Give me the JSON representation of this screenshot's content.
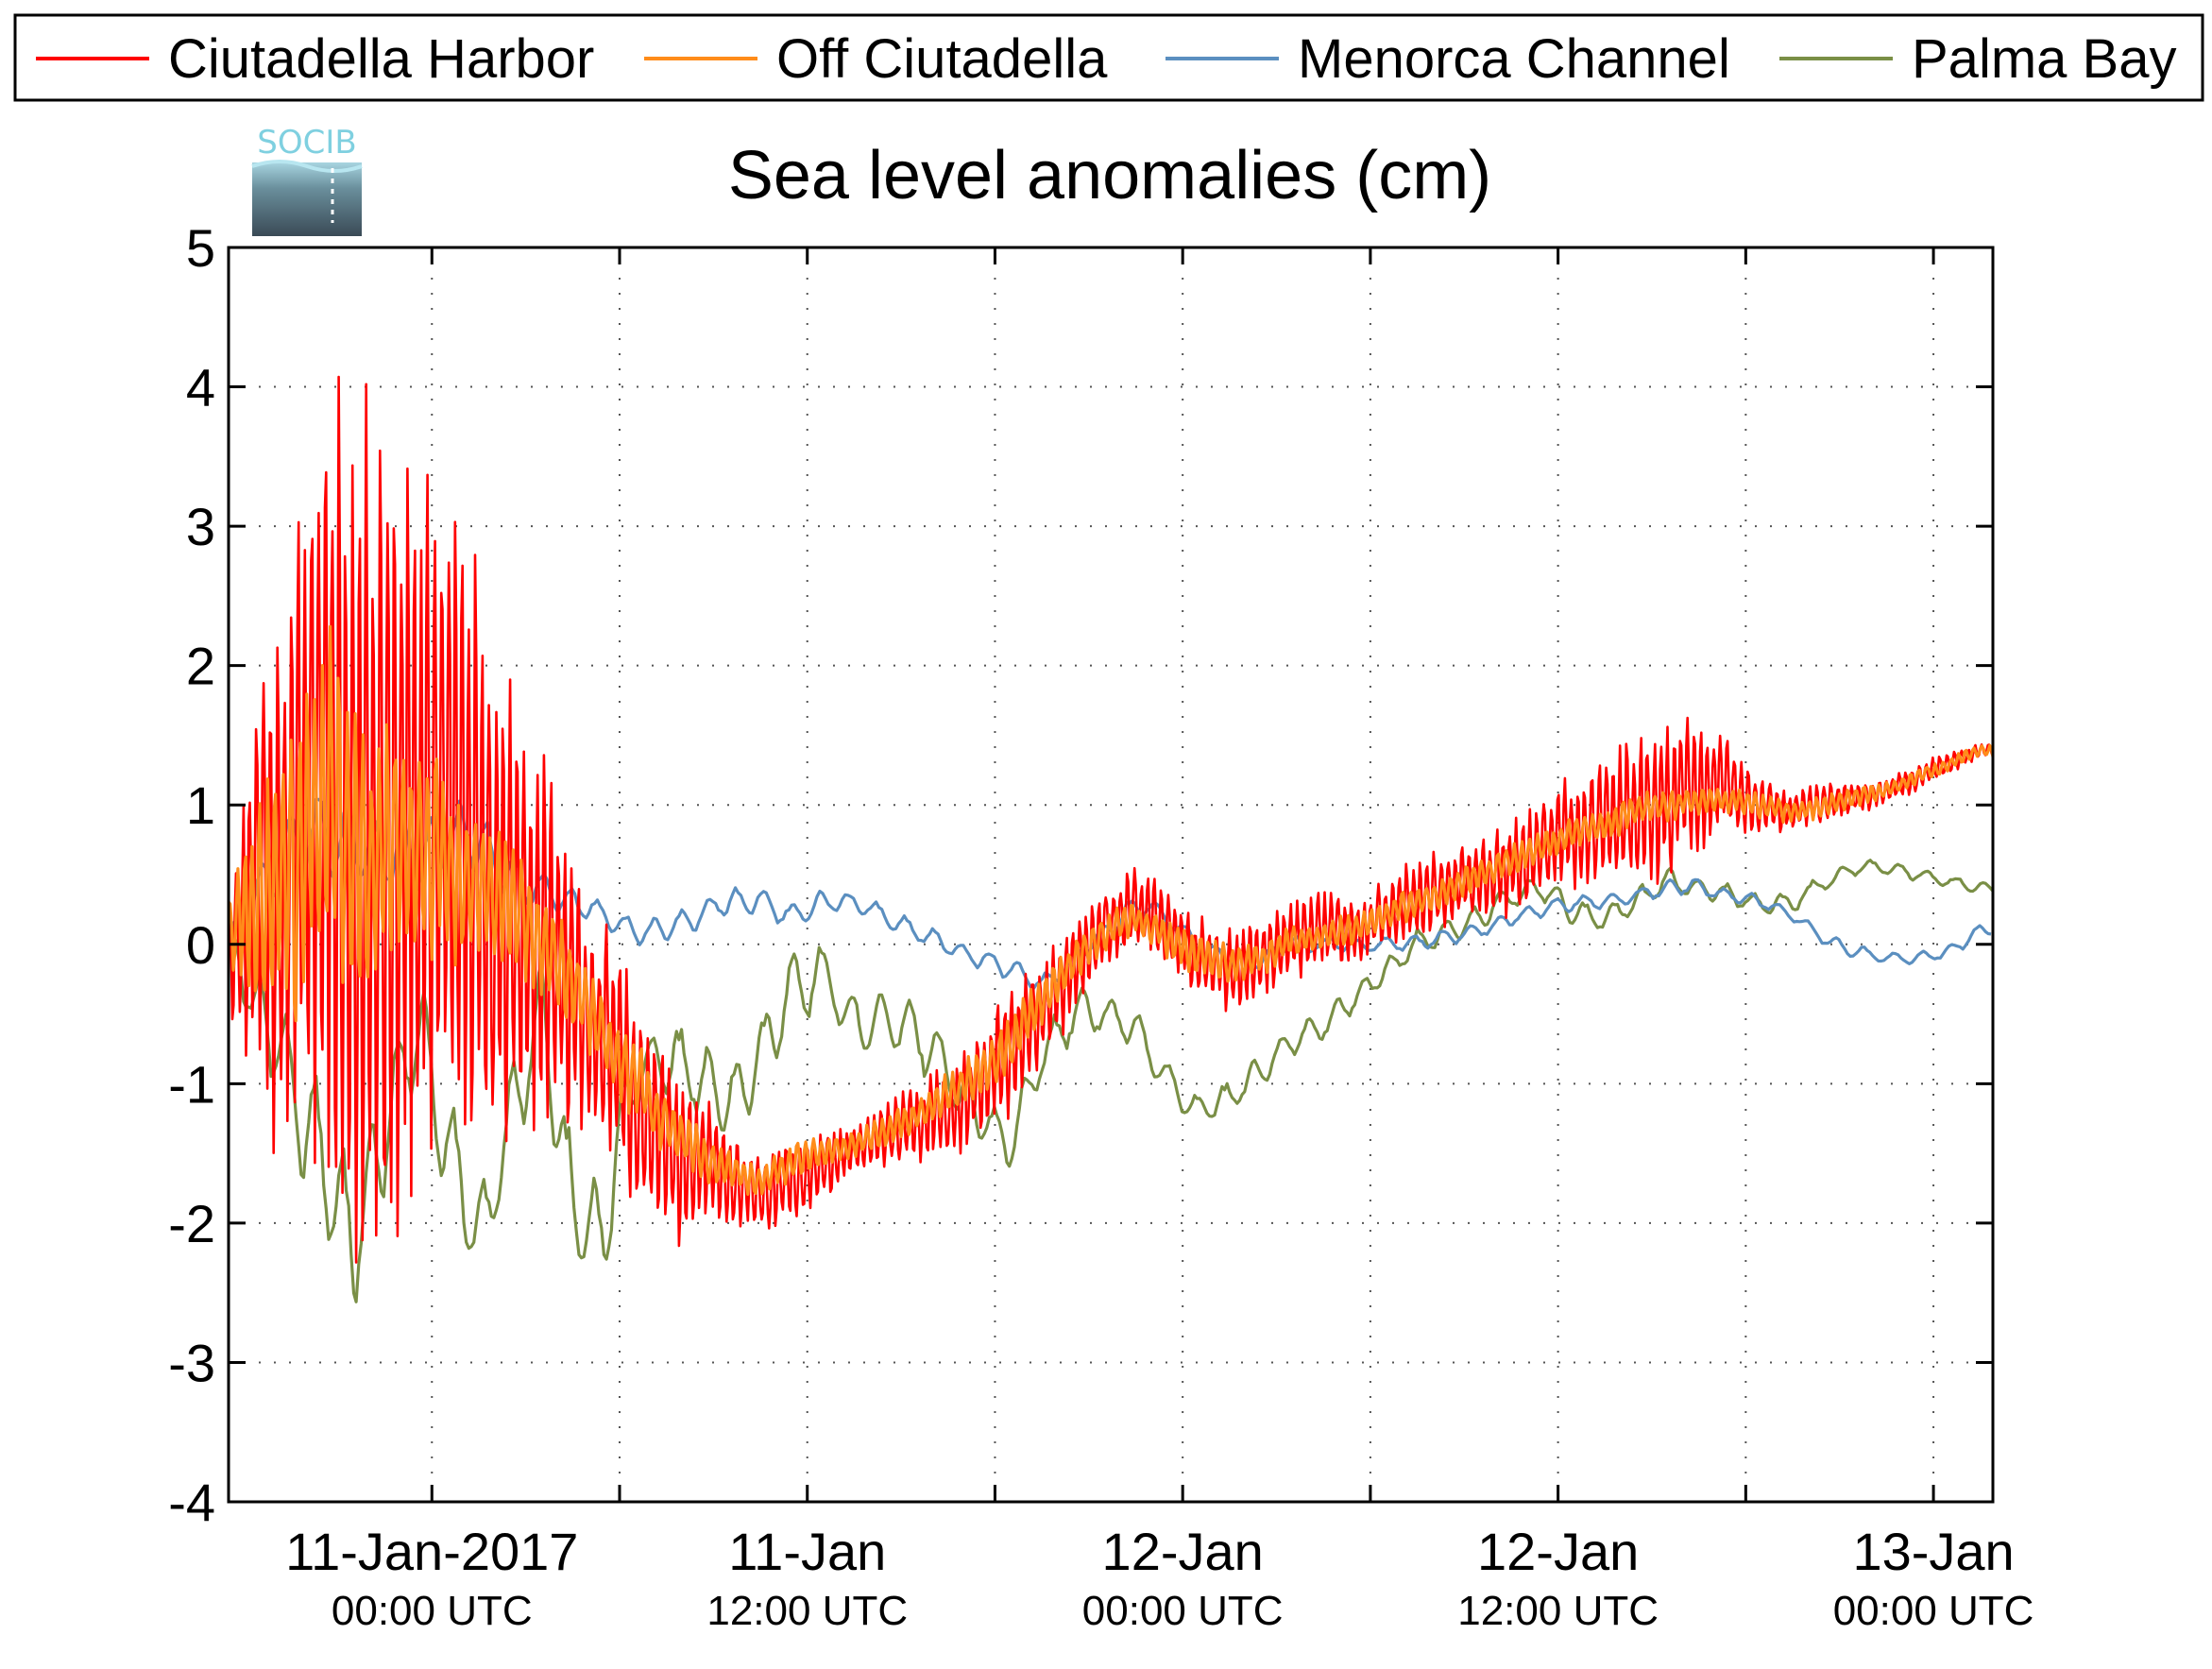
{
  "chart_data": {
    "type": "line",
    "title": "Sea level anomalies (cm)",
    "logo_text": "SOCIB",
    "xlabel": "",
    "ylabel": "",
    "ylim": [
      -4,
      5
    ],
    "yticks": [
      "5",
      "4",
      "3",
      "2",
      "1",
      "0",
      "-1",
      "-2",
      "-3",
      "-4"
    ],
    "xlim_hours": [
      -6.5,
      49.9
    ],
    "xticks": [
      {
        "main": "11-Jan-2017",
        "sub": "00:00 UTC"
      },
      {
        "main": "11-Jan",
        "sub": "12:00 UTC"
      },
      {
        "main": "12-Jan",
        "sub": "00:00 UTC"
      },
      {
        "main": "12-Jan",
        "sub": "12:00 UTC"
      },
      {
        "main": "13-Jan",
        "sub": "00:00 UTC"
      }
    ],
    "grid": true,
    "legend_position": "top",
    "series": [
      {
        "name": "Ciutadella Harbor",
        "color": "#ff0000",
        "x": [
          -6.5,
          -5.5,
          -4.5,
          -3.5,
          -2.5,
          -1.5,
          -0.5,
          0.5,
          1.5,
          2.5,
          3.5,
          4.5,
          5.5,
          6.5,
          7.5,
          8.5,
          9.5,
          10.5,
          11.5,
          12.5,
          13.5,
          14.5,
          15.5,
          16.5,
          17.5,
          18.5,
          19.5,
          20.5,
          21.5,
          22.5,
          23.5,
          24.5,
          25.5,
          26.5,
          27.5,
          28.5,
          29.5,
          30.5,
          31.5,
          32.5,
          33.5,
          34.5,
          35.5,
          36.5,
          37.5,
          38.5,
          39.5,
          40.5,
          41.5,
          42.5,
          43.5,
          44.5,
          45.5,
          46.5,
          47.5,
          48.5,
          49.5
        ],
        "mean": [
          0.0,
          0.4,
          0.8,
          1.0,
          0.9,
          0.8,
          0.9,
          0.8,
          0.6,
          0.4,
          0.1,
          -0.3,
          -0.7,
          -1.1,
          -1.4,
          -1.6,
          -1.7,
          -1.8,
          -1.7,
          -1.6,
          -1.5,
          -1.4,
          -1.3,
          -1.2,
          -1.0,
          -0.8,
          -0.5,
          -0.2,
          0.1,
          0.3,
          0.1,
          -0.1,
          -0.2,
          -0.1,
          0.0,
          0.1,
          0.1,
          0.2,
          0.3,
          0.4,
          0.5,
          0.6,
          0.7,
          0.8,
          0.9,
          1.0,
          1.05,
          1.1,
          1.1,
          1.0,
          1.0,
          1.0,
          1.05,
          1.1,
          1.2,
          1.3,
          1.4
        ],
        "amplitude": [
          0.5,
          1.5,
          2.2,
          2.8,
          3.4,
          3.2,
          2.8,
          2.5,
          2.2,
          1.8,
          1.4,
          1.0,
          0.9,
          0.8,
          0.7,
          0.5,
          0.4,
          0.3,
          0.3,
          0.25,
          0.2,
          0.25,
          0.3,
          0.35,
          0.4,
          0.5,
          0.4,
          0.35,
          0.3,
          0.3,
          0.3,
          0.3,
          0.3,
          0.3,
          0.3,
          0.3,
          0.25,
          0.25,
          0.3,
          0.3,
          0.3,
          0.35,
          0.4,
          0.4,
          0.5,
          0.6,
          0.65,
          0.5,
          0.35,
          0.2,
          0.15,
          0.15,
          0.12,
          0.1,
          0.1,
          0.08,
          0.05
        ]
      },
      {
        "name": "Off Ciutadella",
        "color": "#ff8c1a",
        "x": [
          -6.5,
          -5.5,
          -4.5,
          -3.5,
          -2.5,
          -1.5,
          -0.5,
          0.5,
          1.5,
          2.5,
          3.5,
          4.5,
          5.5,
          6.5,
          7.5,
          8.5,
          9.5,
          10.5,
          11.5,
          12.5,
          13.5,
          14.5,
          15.5,
          16.5,
          17.5,
          18.5,
          19.5,
          20.5,
          21.5,
          22.5,
          23.5,
          24.5,
          25.5,
          26.5,
          27.5,
          28.5,
          29.5,
          30.5,
          31.5,
          32.5,
          33.5,
          34.5,
          35.5,
          36.5,
          37.5,
          38.5,
          39.5,
          40.5,
          41.5,
          42.5,
          43.5,
          44.5,
          45.5,
          46.5,
          47.5,
          48.5,
          49.5
        ],
        "mean": [
          0.0,
          0.3,
          0.6,
          0.8,
          0.8,
          0.7,
          0.7,
          0.6,
          0.4,
          0.3,
          0.0,
          -0.3,
          -0.7,
          -1.0,
          -1.3,
          -1.5,
          -1.6,
          -1.7,
          -1.6,
          -1.5,
          -1.45,
          -1.35,
          -1.25,
          -1.1,
          -0.9,
          -0.7,
          -0.4,
          -0.15,
          0.1,
          0.2,
          0.05,
          -0.1,
          -0.15,
          -0.1,
          0.0,
          0.05,
          0.1,
          0.2,
          0.3,
          0.4,
          0.5,
          0.6,
          0.7,
          0.8,
          0.85,
          0.95,
          1.0,
          1.05,
          1.05,
          1.0,
          0.95,
          1.0,
          1.05,
          1.1,
          1.2,
          1.3,
          1.4
        ],
        "amplitude": [
          0.4,
          0.9,
          1.2,
          1.3,
          1.2,
          1.0,
          0.8,
          0.7,
          0.6,
          0.5,
          0.4,
          0.35,
          0.3,
          0.3,
          0.25,
          0.2,
          0.15,
          0.15,
          0.15,
          0.12,
          0.1,
          0.12,
          0.12,
          0.15,
          0.2,
          0.2,
          0.2,
          0.15,
          0.15,
          0.12,
          0.15,
          0.15,
          0.15,
          0.12,
          0.12,
          0.12,
          0.12,
          0.12,
          0.12,
          0.12,
          0.12,
          0.12,
          0.12,
          0.12,
          0.12,
          0.12,
          0.12,
          0.1,
          0.1,
          0.1,
          0.08,
          0.08,
          0.08,
          0.06,
          0.06,
          0.05,
          0.05
        ]
      },
      {
        "name": "Menorca Channel",
        "color": "#5b8fc0",
        "x": [
          -6.5,
          -5.5,
          -4.5,
          -3.5,
          -2.5,
          -1.5,
          -0.5,
          0.5,
          1.5,
          2.5,
          3.5,
          4.5,
          5.5,
          6.5,
          7.5,
          8.5,
          9.5,
          10.5,
          11.5,
          12.5,
          13.5,
          14.5,
          15.5,
          16.5,
          17.5,
          18.5,
          19.5,
          20.5,
          21.5,
          22.5,
          23.5,
          24.5,
          25.5,
          26.5,
          27.5,
          28.5,
          29.5,
          30.5,
          31.5,
          32.5,
          33.5,
          34.5,
          35.5,
          36.5,
          37.5,
          38.5,
          39.5,
          40.5,
          41.5,
          42.5,
          43.5,
          44.5,
          45.5,
          46.5,
          47.5,
          48.5,
          49.5
        ],
        "mean": [
          0.0,
          0.4,
          0.7,
          0.8,
          0.7,
          0.6,
          0.6,
          0.8,
          0.7,
          0.5,
          0.4,
          0.3,
          0.2,
          0.1,
          0.1,
          0.2,
          0.3,
          0.3,
          0.2,
          0.3,
          0.3,
          0.2,
          0.1,
          0.0,
          -0.1,
          -0.2,
          -0.3,
          -0.1,
          0.1,
          0.3,
          0.2,
          0.0,
          -0.1,
          -0.1,
          0.0,
          0.0,
          0.0,
          0.0,
          0.0,
          0.05,
          0.1,
          0.2,
          0.25,
          0.3,
          0.3,
          0.35,
          0.4,
          0.4,
          0.35,
          0.3,
          0.2,
          0.05,
          -0.05,
          -0.1,
          -0.1,
          -0.05,
          0.1
        ],
        "amplitude": [
          0.1,
          0.2,
          0.3,
          0.3,
          0.3,
          0.25,
          0.25,
          0.3,
          0.25,
          0.2,
          0.15,
          0.12,
          0.1,
          0.1,
          0.1,
          0.1,
          0.1,
          0.1,
          0.1,
          0.1,
          0.08,
          0.08,
          0.08,
          0.08,
          0.08,
          0.08,
          0.08,
          0.08,
          0.08,
          0.08,
          0.08,
          0.06,
          0.06,
          0.06,
          0.06,
          0.06,
          0.06,
          0.06,
          0.06,
          0.06,
          0.06,
          0.06,
          0.06,
          0.06,
          0.06,
          0.06,
          0.06,
          0.06,
          0.05,
          0.05,
          0.05,
          0.05,
          0.05,
          0.05,
          0.05,
          0.05,
          0.05
        ]
      },
      {
        "name": "Palma Bay",
        "color": "#7a8f46",
        "x": [
          -6.5,
          -5.5,
          -4.5,
          -3.5,
          -2.5,
          -1.5,
          -0.5,
          0.5,
          1.5,
          2.5,
          3.5,
          4.5,
          5.5,
          6.5,
          7.5,
          8.5,
          9.5,
          10.5,
          11.5,
          12.5,
          13.5,
          14.5,
          15.5,
          16.5,
          17.5,
          18.5,
          19.5,
          20.5,
          21.5,
          22.5,
          23.5,
          24.5,
          25.5,
          26.5,
          27.5,
          28.5,
          29.5,
          30.5,
          31.5,
          32.5,
          33.5,
          34.5,
          35.5,
          36.5,
          37.5,
          38.5,
          39.5,
          40.5,
          41.5,
          42.5,
          43.5,
          44.5,
          45.5,
          46.5,
          47.5,
          48.5,
          49.5
        ],
        "mean": [
          0.0,
          -0.5,
          -1.0,
          -1.6,
          -2.2,
          -1.4,
          -0.6,
          -1.5,
          -2.2,
          -1.4,
          -0.5,
          -2.0,
          -2.0,
          -0.9,
          -0.8,
          -0.9,
          -1.1,
          -0.8,
          -0.3,
          -0.2,
          -0.6,
          -0.5,
          -0.6,
          -0.9,
          -1.2,
          -1.4,
          -0.8,
          -0.5,
          -0.5,
          -0.6,
          -1.0,
          -1.2,
          -1.1,
          -0.9,
          -0.7,
          -0.6,
          -0.4,
          -0.2,
          0.0,
          0.1,
          0.2,
          0.35,
          0.4,
          0.25,
          0.2,
          0.3,
          0.45,
          0.4,
          0.35,
          0.25,
          0.3,
          0.45,
          0.55,
          0.55,
          0.5,
          0.45,
          0.4
        ],
        "amplitude": [
          0.2,
          0.3,
          0.4,
          0.6,
          0.5,
          0.5,
          0.5,
          0.5,
          0.4,
          0.4,
          0.4,
          0.5,
          0.4,
          0.3,
          0.3,
          0.3,
          0.3,
          0.3,
          0.3,
          0.25,
          0.25,
          0.25,
          0.25,
          0.25,
          0.2,
          0.2,
          0.2,
          0.2,
          0.15,
          0.15,
          0.15,
          0.12,
          0.12,
          0.12,
          0.12,
          0.1,
          0.1,
          0.1,
          0.1,
          0.1,
          0.1,
          0.1,
          0.1,
          0.1,
          0.1,
          0.1,
          0.1,
          0.08,
          0.08,
          0.08,
          0.08,
          0.06,
          0.06,
          0.05,
          0.05,
          0.05,
          0.05
        ]
      }
    ]
  }
}
